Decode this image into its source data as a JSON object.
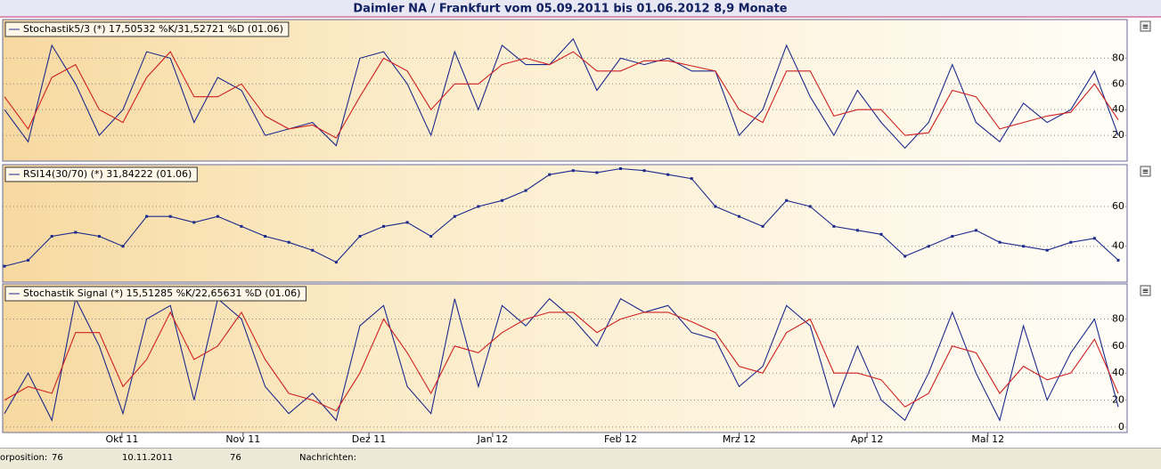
{
  "title": "Daimler NA / Frankfurt vom 05.09.2011 bis 01.06.2012 8,9 Monate",
  "status_bar": {
    "position_label": "orposition:",
    "position_value": "76",
    "date": "10.11.2011",
    "value": "76",
    "news_label": "Nachrichten:"
  },
  "chart_data": [
    {
      "type": "line",
      "label": "Stochastik5/3 (*) 17,50532 %K/31,52721 %D (01.06)",
      "xlim": [
        0,
        47
      ],
      "ylim": [
        0,
        110
      ],
      "yticks": [
        20,
        40,
        60,
        80
      ],
      "grid": true,
      "series": [
        {
          "color": "#1c2a8c",
          "values": [
            40,
            15,
            90,
            60,
            20,
            40,
            85,
            80,
            30,
            65,
            55,
            20,
            25,
            30,
            12,
            80,
            85,
            60,
            20,
            85,
            40,
            90,
            75,
            75,
            95,
            55,
            80,
            75,
            80,
            70,
            70,
            20,
            40,
            90,
            50,
            20,
            55,
            30,
            10,
            30,
            75,
            30,
            15,
            45,
            30,
            40,
            70,
            20
          ]
        },
        {
          "color": "#d02020",
          "values": [
            50,
            25,
            65,
            75,
            40,
            30,
            65,
            85,
            50,
            50,
            60,
            35,
            25,
            28,
            18,
            50,
            80,
            70,
            40,
            60,
            60,
            75,
            80,
            75,
            85,
            70,
            70,
            78,
            78,
            74,
            70,
            40,
            30,
            70,
            70,
            35,
            40,
            40,
            20,
            22,
            55,
            50,
            25,
            30,
            35,
            38,
            60,
            32
          ]
        }
      ]
    },
    {
      "type": "line",
      "label": "RSI14(30/70) (*) 31,84222 (01.06)",
      "xlim": [
        0,
        47
      ],
      "ylim": [
        22,
        81
      ],
      "yticks": [
        40,
        60
      ],
      "grid": true,
      "series": [
        {
          "color": "#1c2a8c",
          "values": [
            30,
            33,
            45,
            47,
            45,
            40,
            55,
            55,
            52,
            55,
            50,
            45,
            42,
            38,
            32,
            45,
            50,
            52,
            45,
            55,
            60,
            63,
            68,
            76,
            78,
            77,
            79,
            78,
            76,
            74,
            60,
            55,
            50,
            63,
            60,
            50,
            48,
            46,
            35,
            40,
            45,
            48,
            42,
            40,
            38,
            42,
            44,
            33
          ]
        }
      ]
    },
    {
      "type": "line",
      "label": "Stochastik Signal (*) 15,51285 %K/22,65631 %D (01.06)",
      "xlim": [
        0,
        47
      ],
      "ylim": [
        -4,
        106
      ],
      "yticks": [
        0,
        20,
        40,
        60,
        80
      ],
      "xticks": [
        {
          "value": 4.96,
          "label": "Okt 11"
        },
        {
          "value": 10.07,
          "label": "Nov 11"
        },
        {
          "value": 15.38,
          "label": "Dez 11"
        },
        {
          "value": 20.6,
          "label": "Jan 12"
        },
        {
          "value": 26.0,
          "label": "Feb 12"
        },
        {
          "value": 31.0,
          "label": "Mrz 12"
        },
        {
          "value": 36.4,
          "label": "Apr 12"
        },
        {
          "value": 41.5,
          "label": "Mai 12"
        }
      ],
      "grid": true,
      "series": [
        {
          "color": "#1c2a8c",
          "values": [
            10,
            40,
            5,
            95,
            60,
            10,
            80,
            90,
            20,
            95,
            80,
            30,
            10,
            25,
            5,
            75,
            90,
            30,
            10,
            95,
            30,
            90,
            75,
            95,
            80,
            60,
            95,
            85,
            90,
            70,
            65,
            30,
            45,
            90,
            75,
            15,
            60,
            20,
            5,
            40,
            85,
            40,
            5,
            75,
            20,
            55,
            80,
            15
          ]
        },
        {
          "color": "#d02020",
          "values": [
            20,
            30,
            25,
            70,
            70,
            30,
            50,
            85,
            50,
            60,
            85,
            50,
            25,
            20,
            12,
            40,
            80,
            55,
            25,
            60,
            55,
            70,
            80,
            85,
            85,
            70,
            80,
            85,
            85,
            78,
            70,
            45,
            40,
            70,
            80,
            40,
            40,
            35,
            15,
            25,
            60,
            55,
            25,
            45,
            35,
            40,
            65,
            25
          ]
        }
      ]
    }
  ]
}
